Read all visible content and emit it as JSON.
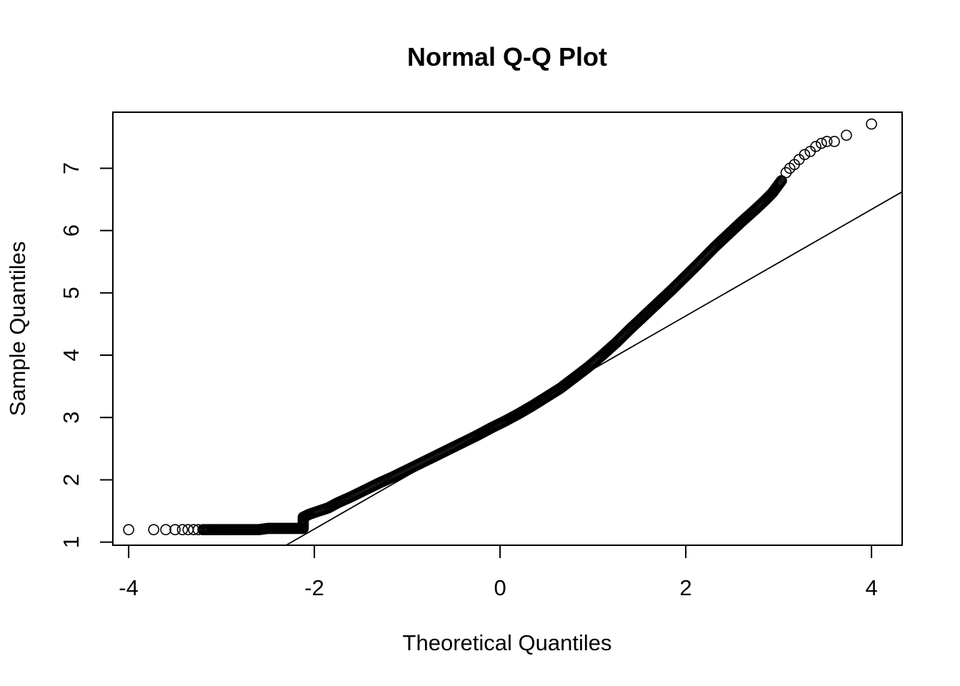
{
  "chart_data": {
    "type": "scatter",
    "title": "Normal Q-Q Plot",
    "xlabel": "Theoretical Quantiles",
    "ylabel": "Sample Quantiles",
    "xlim": [
      -4.17,
      4.33
    ],
    "ylim": [
      0.95,
      7.9
    ],
    "xticks": [
      -4,
      -2,
      0,
      2,
      4
    ],
    "xtick_labels": [
      "-4",
      "-2",
      "0",
      "2",
      "4"
    ],
    "yticks": [
      1,
      2,
      3,
      4,
      5,
      6,
      7
    ],
    "ytick_labels": [
      "1",
      "2",
      "3",
      "4",
      "5",
      "6",
      "7"
    ],
    "grid": false,
    "legend": "none",
    "reference_line": {
      "intercept": 2.92,
      "slope": 0.855
    },
    "series": [
      {
        "points": [
          [
            -4.0,
            1.2
          ],
          [
            -3.73,
            1.2
          ],
          [
            -3.6,
            1.2
          ],
          [
            -3.5,
            1.2
          ],
          [
            -3.42,
            1.2
          ],
          [
            -3.36,
            1.2
          ],
          [
            -3.3,
            1.2
          ],
          [
            -3.25,
            1.2
          ],
          [
            -3.2,
            1.2
          ],
          [
            -3.15,
            1.2
          ],
          [
            -3.1,
            1.2
          ],
          [
            -3.05,
            1.2
          ],
          [
            -3.0,
            1.2
          ],
          [
            -2.9,
            1.2
          ],
          [
            -2.8,
            1.2
          ],
          [
            -2.7,
            1.2
          ],
          [
            -2.6,
            1.2
          ],
          [
            -2.5,
            1.22
          ],
          [
            -2.4,
            1.22
          ],
          [
            -2.3,
            1.22
          ],
          [
            -2.2,
            1.22
          ],
          [
            -2.12,
            1.22
          ],
          [
            -2.12,
            1.4
          ],
          [
            -2.05,
            1.45
          ],
          [
            -1.95,
            1.5
          ],
          [
            -1.85,
            1.55
          ],
          [
            -1.75,
            1.63
          ],
          [
            -1.6,
            1.73
          ],
          [
            -1.45,
            1.84
          ],
          [
            -1.3,
            1.95
          ],
          [
            -1.15,
            2.05
          ],
          [
            -1.0,
            2.16
          ],
          [
            -0.85,
            2.27
          ],
          [
            -0.7,
            2.38
          ],
          [
            -0.55,
            2.49
          ],
          [
            -0.4,
            2.6
          ],
          [
            -0.25,
            2.71
          ],
          [
            -0.1,
            2.83
          ],
          [
            0.05,
            2.94
          ],
          [
            0.2,
            3.06
          ],
          [
            0.35,
            3.19
          ],
          [
            0.5,
            3.33
          ],
          [
            0.65,
            3.47
          ],
          [
            0.8,
            3.64
          ],
          [
            0.95,
            3.81
          ],
          [
            1.1,
            4.0
          ],
          [
            1.25,
            4.2
          ],
          [
            1.4,
            4.42
          ],
          [
            1.55,
            4.63
          ],
          [
            1.7,
            4.84
          ],
          [
            1.85,
            5.05
          ],
          [
            2.0,
            5.27
          ],
          [
            2.15,
            5.49
          ],
          [
            2.3,
            5.72
          ],
          [
            2.45,
            5.93
          ],
          [
            2.6,
            6.14
          ],
          [
            2.75,
            6.34
          ],
          [
            2.85,
            6.48
          ],
          [
            2.93,
            6.6
          ],
          [
            2.98,
            6.7
          ],
          [
            3.03,
            6.8
          ],
          [
            3.08,
            6.93
          ],
          [
            3.12,
            7.0
          ],
          [
            3.17,
            7.06
          ],
          [
            3.22,
            7.14
          ],
          [
            3.28,
            7.22
          ],
          [
            3.34,
            7.27
          ],
          [
            3.4,
            7.35
          ],
          [
            3.46,
            7.4
          ],
          [
            3.52,
            7.43
          ],
          [
            3.6,
            7.43
          ],
          [
            3.73,
            7.53
          ],
          [
            4.0,
            7.71
          ]
        ]
      }
    ]
  }
}
